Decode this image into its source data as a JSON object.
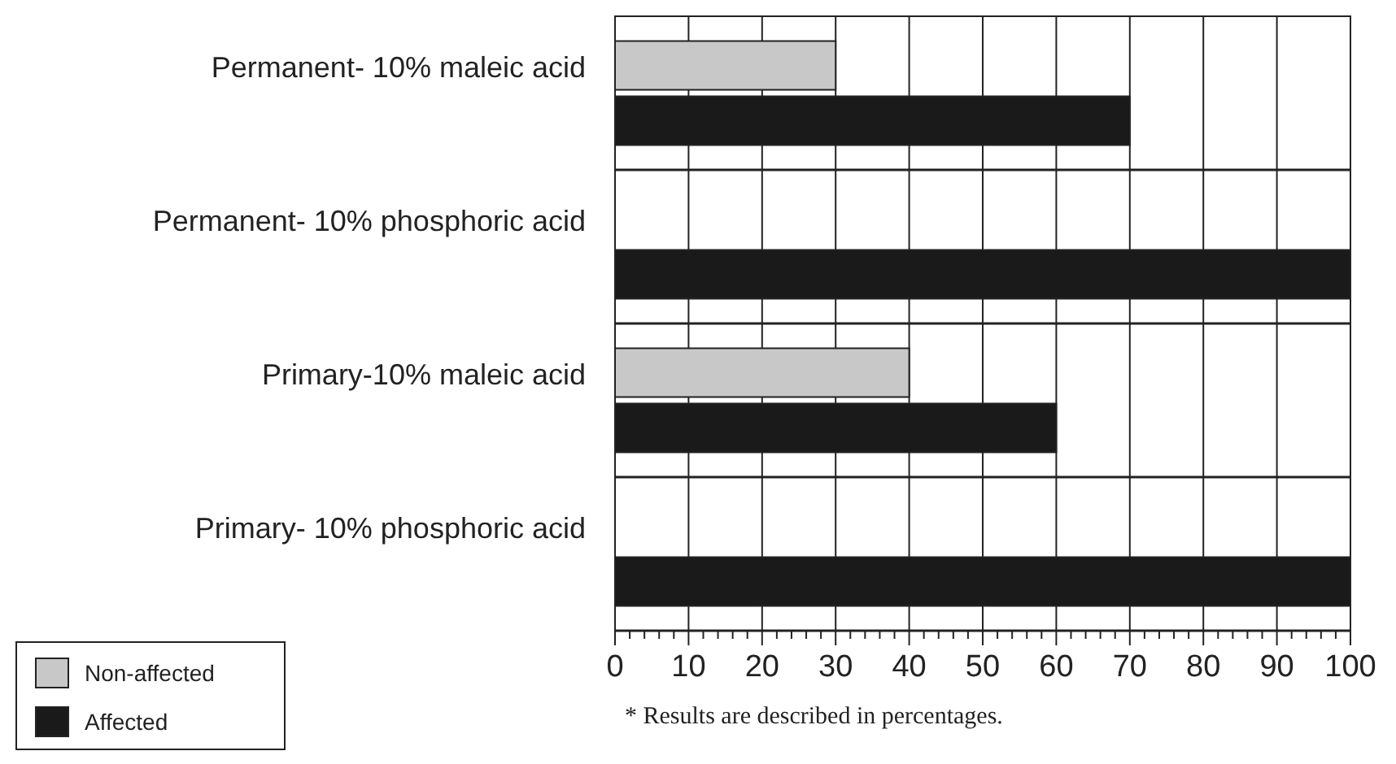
{
  "chart_data": {
    "type": "bar",
    "orientation": "horizontal",
    "categories": [
      "Permanent- 10% maleic acid",
      "Permanent- 10% phosphoric acid",
      "Primary-10% maleic acid",
      "Primary- 10% phosphoric acid"
    ],
    "series": [
      {
        "name": "Non-affected",
        "color": "#c8c8c8",
        "values": [
          30,
          0,
          40,
          0
        ]
      },
      {
        "name": "Affected",
        "color": "#1a1a1a",
        "values": [
          70,
          100,
          60,
          100
        ]
      }
    ],
    "xlim": [
      0,
      100
    ],
    "xticks": [
      0,
      {
        "value": 2,
        "label": null
      },
      {
        "value": 4,
        "label": null
      },
      {
        "value": 6,
        "label": null
      },
      {
        "value": 8,
        "label": null
      },
      10,
      {
        "value": 12,
        "label": null
      },
      {
        "value": 14,
        "label": null
      },
      {
        "value": 16,
        "label": null
      },
      {
        "value": 18,
        "label": null
      },
      20,
      {
        "value": 22,
        "label": null
      },
      {
        "value": 24,
        "label": null
      },
      {
        "value": 26,
        "label": null
      },
      {
        "value": 28,
        "label": null
      },
      30,
      {
        "value": 32,
        "label": null
      },
      {
        "value": 34,
        "label": null
      },
      {
        "value": 36,
        "label": null
      },
      {
        "value": 38,
        "label": null
      },
      40,
      {
        "value": 42,
        "label": null
      },
      {
        "value": 44,
        "label": null
      },
      {
        "value": 46,
        "label": null
      },
      {
        "value": 48,
        "label": null
      },
      50,
      {
        "value": 52,
        "label": null
      },
      {
        "value": 54,
        "label": null
      },
      {
        "value": 56,
        "label": null
      },
      {
        "value": 58,
        "label": null
      },
      60,
      {
        "value": 62,
        "label": null
      },
      {
        "value": 64,
        "label": null
      },
      {
        "value": 66,
        "label": null
      },
      {
        "value": 68,
        "label": null
      },
      70,
      {
        "value": 72,
        "label": null
      },
      {
        "value": 74,
        "label": null
      },
      {
        "value": 76,
        "label": null
      },
      {
        "value": 78,
        "label": null
      },
      80,
      {
        "value": 82,
        "label": null
      },
      {
        "value": 84,
        "label": null
      },
      {
        "value": 86,
        "label": null
      },
      {
        "value": 88,
        "label": null
      },
      90,
      {
        "value": 92,
        "label": null
      },
      {
        "value": 94,
        "label": null
      },
      {
        "value": 96,
        "label": null
      },
      {
        "value": 98,
        "label": null
      },
      100
    ],
    "grid": "x",
    "legend": "bottom left",
    "annotations": [
      "* Results are described in percentages."
    ]
  }
}
